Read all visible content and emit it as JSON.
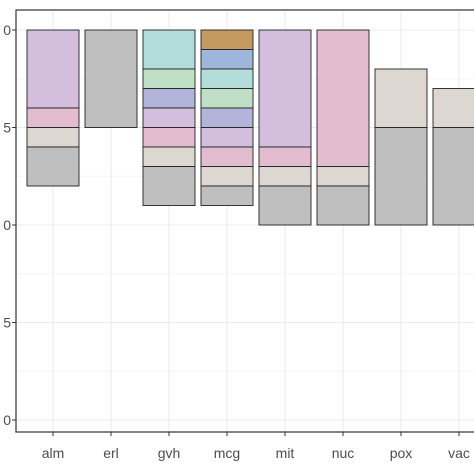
{
  "chart_data": {
    "type": "bar",
    "stacked": true,
    "categories": [
      "alm",
      "erl",
      "gvh",
      "mcg",
      "mit",
      "nuc",
      "pox",
      "vac"
    ],
    "y_ticks": [
      0,
      5,
      0,
      5,
      0
    ],
    "ylim": [
      0,
      10
    ],
    "grid": true,
    "legend": "none",
    "stacks": [
      {
        "category": "alm",
        "segments": [
          {
            "from": 0,
            "to": 2,
            "color": "#d3bedd"
          },
          {
            "from": 2,
            "to": 2.5,
            "color": "#e4bcd0"
          },
          {
            "from": 2.5,
            "to": 3,
            "color": "#ddd7d2"
          },
          {
            "from": 3,
            "to": 4,
            "color": "#bfbfbf"
          }
        ]
      },
      {
        "category": "erl",
        "segments": [
          {
            "from": 0,
            "to": 2.5,
            "color": "#bfbfbf"
          }
        ]
      },
      {
        "category": "gvh",
        "segments": [
          {
            "from": 0,
            "to": 1,
            "color": "#b2dddb"
          },
          {
            "from": 1,
            "to": 1.5,
            "color": "#bfe0c6"
          },
          {
            "from": 1.5,
            "to": 2,
            "color": "#b2b4d9"
          },
          {
            "from": 2,
            "to": 2.5,
            "color": "#d3bedd"
          },
          {
            "from": 2.5,
            "to": 3,
            "color": "#e4bcd0"
          },
          {
            "from": 3,
            "to": 3.5,
            "color": "#ddd7d2"
          },
          {
            "from": 3.5,
            "to": 4.5,
            "color": "#bfbfbf"
          }
        ]
      },
      {
        "category": "mcg",
        "segments": [
          {
            "from": 0,
            "to": 0.5,
            "color": "#c49a62"
          },
          {
            "from": 0.5,
            "to": 1,
            "color": "#9db6d9"
          },
          {
            "from": 1,
            "to": 1.5,
            "color": "#b2dddb"
          },
          {
            "from": 1.5,
            "to": 2,
            "color": "#bfe0c6"
          },
          {
            "from": 2,
            "to": 2.5,
            "color": "#b2b4d9"
          },
          {
            "from": 2.5,
            "to": 3,
            "color": "#d3bedd"
          },
          {
            "from": 3,
            "to": 3.5,
            "color": "#e4bcd0"
          },
          {
            "from": 3.5,
            "to": 4,
            "color": "#ddd7d2"
          },
          {
            "from": 4,
            "to": 4.5,
            "color": "#bfbfbf"
          }
        ]
      },
      {
        "category": "mit",
        "segments": [
          {
            "from": 0,
            "to": 3,
            "color": "#d3bedd"
          },
          {
            "from": 3,
            "to": 3.5,
            "color": "#e4bcd0"
          },
          {
            "from": 3.5,
            "to": 4,
            "color": "#ddd7d2"
          },
          {
            "from": 4,
            "to": 5,
            "color": "#bfbfbf"
          }
        ]
      },
      {
        "category": "nuc",
        "segments": [
          {
            "from": 0,
            "to": 3.5,
            "color": "#e4bcd0"
          },
          {
            "from": 3.5,
            "to": 4,
            "color": "#ddd7d2"
          },
          {
            "from": 4,
            "to": 5,
            "color": "#bfbfbf"
          }
        ]
      },
      {
        "category": "pox",
        "segments": [
          {
            "from": 1,
            "to": 2.5,
            "color": "#ddd7d2"
          },
          {
            "from": 2.5,
            "to": 5,
            "color": "#bfbfbf"
          }
        ]
      },
      {
        "category": "vac",
        "segments": [
          {
            "from": 1.5,
            "to": 2.5,
            "color": "#ddd7d2"
          },
          {
            "from": 2.5,
            "to": 5,
            "color": "#bfbfbf"
          }
        ]
      }
    ]
  },
  "colors": {
    "panel_border": "#333333",
    "grid_major": "#ebebeb",
    "grid_minor": "#f5f5f5",
    "axis_text": "#4d4d4d",
    "bar_outline": "#222222"
  }
}
